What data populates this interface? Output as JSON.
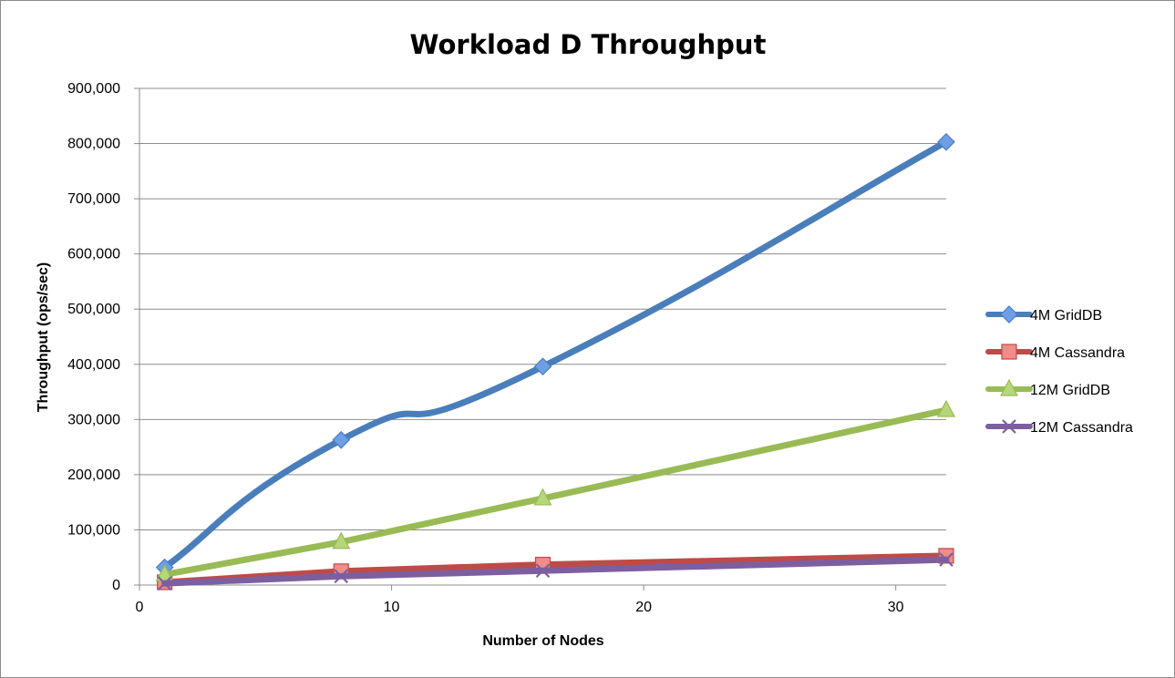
{
  "chart_data": {
    "type": "line",
    "title": "Workload D Throughput",
    "xlabel": "Number of Nodes",
    "ylabel": "Throughput (ops/sec)",
    "xlim": [
      0,
      32
    ],
    "ylim": [
      0,
      900000
    ],
    "x_ticks": [
      "0",
      "10",
      "20",
      "30"
    ],
    "y_ticks": [
      "0",
      "100,000",
      "200,000",
      "300,000",
      "400,000",
      "500,000",
      "600,000",
      "700,000",
      "800,000",
      "900,000"
    ],
    "grid": "horizontal",
    "legend_position": "right",
    "series": [
      {
        "name": "4M GridDB",
        "color": "#4a7ebb",
        "marker": "diamond",
        "marker_fill": "#6f9ee8",
        "smooth": true,
        "x": [
          1,
          8,
          16,
          32
        ],
        "y": [
          32000,
          263000,
          396000,
          803000
        ]
      },
      {
        "name": "4M Cassandra",
        "color": "#be4b48",
        "marker": "square",
        "marker_fill": "#f08c8a",
        "smooth": false,
        "x": [
          1,
          8,
          16,
          32
        ],
        "y": [
          5000,
          25000,
          37000,
          53000
        ]
      },
      {
        "name": "12M GridDB",
        "color": "#98bb55",
        "marker": "triangle",
        "marker_fill": "#b5d77a",
        "smooth": false,
        "x": [
          1,
          8,
          16,
          32
        ],
        "y": [
          19000,
          78000,
          157000,
          317000
        ]
      },
      {
        "name": "12M Cassandra",
        "color": "#7d5fa0",
        "marker": "x",
        "marker_fill": "#7d5fa0",
        "smooth": false,
        "x": [
          1,
          8,
          16,
          32
        ],
        "y": [
          3000,
          16000,
          26000,
          46000
        ]
      }
    ]
  }
}
